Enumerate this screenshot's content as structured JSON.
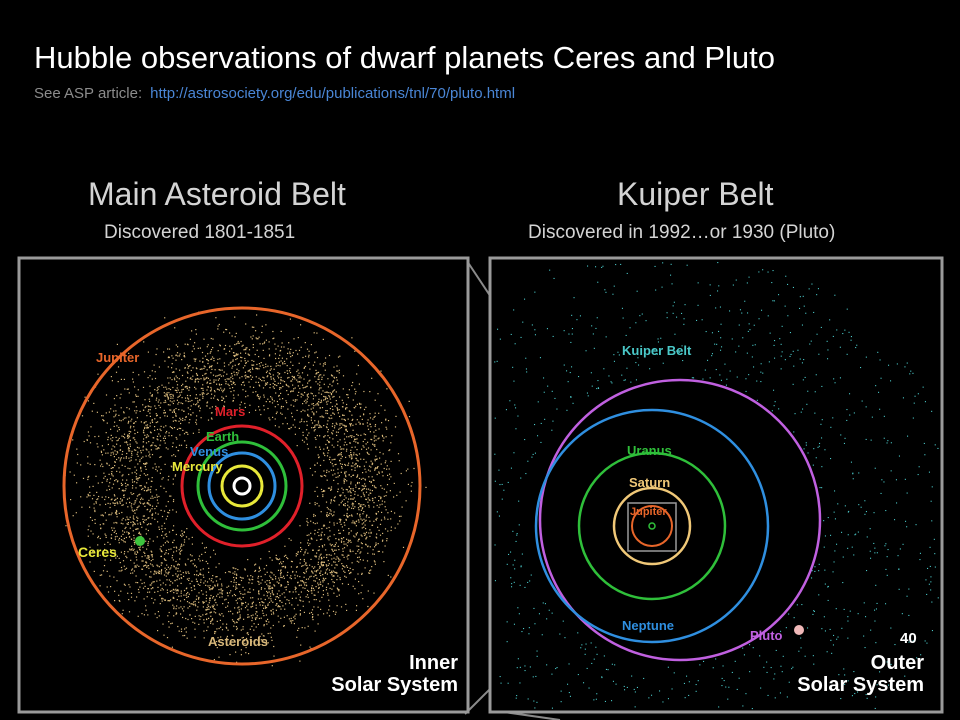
{
  "header": {
    "title": "Hubble observations of dwarf planets Ceres and Pluto",
    "subtitle_prefix": "See ASP article:",
    "link_text": "http://astrosociety.org/edu/publications/tnl/70/pluto.html"
  },
  "left_panel": {
    "heading": "Main Asteroid Belt",
    "subheading": "Discovered 1801-1851",
    "labels": {
      "jupiter": "Jupiter",
      "mars": "Mars",
      "earth": "Earth",
      "venus": "Venus",
      "mercury": "Mercury",
      "asteroids": "Asteroids",
      "ceres": "Ceres",
      "caption_line1": "Inner",
      "caption_line2": "Solar System"
    }
  },
  "right_panel": {
    "heading": "Kuiper Belt",
    "subheading": "Discovered in 1992…or 1930 (Pluto)",
    "labels": {
      "kuiper_belt": "Kuiper Belt",
      "uranus": "Uranus",
      "saturn": "Saturn",
      "jupiter": "Jupiter",
      "neptune": "Neptune",
      "pluto": "Pluto",
      "caption_line1": "Outer",
      "caption_line2": "Solar System"
    }
  },
  "slide_number": "40",
  "colors": {
    "jupiter_orbit": "#e8662a",
    "mars_orbit": "#e0202a",
    "earth_orbit": "#2fbf3a",
    "venus_orbit": "#2f8fe0",
    "mercury_orbit": "#e8e83a",
    "asteroid_dots": "#d8b87a",
    "uranus_orbit": "#2fbf3a",
    "saturn_orbit": "#f0c878",
    "neptune_orbit": "#2f8fe0",
    "pluto_orbit": "#c060e0",
    "kuiper_dots": "#4ac8c8",
    "frame": "#9a9a9a"
  }
}
